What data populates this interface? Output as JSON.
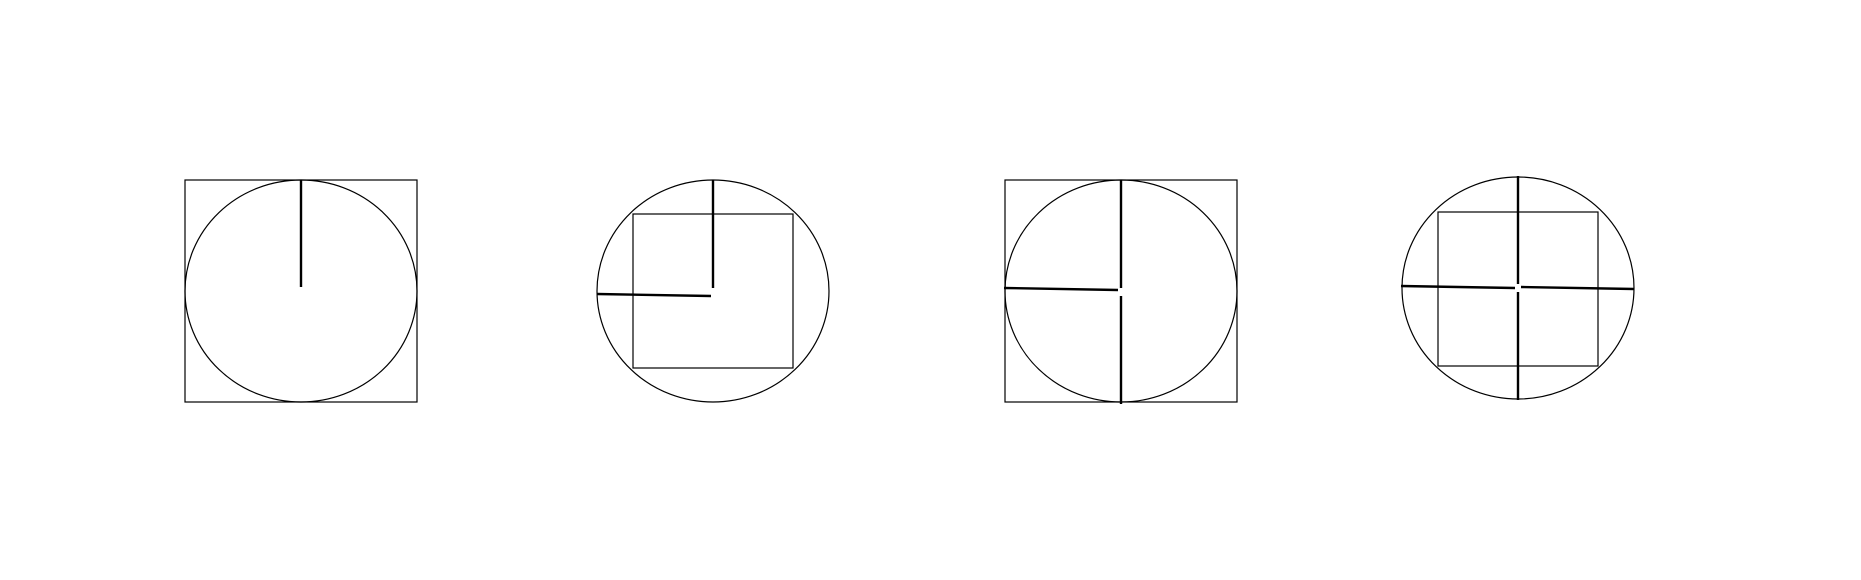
{
  "colors": {
    "background": "#ffffff",
    "outline": "#000000"
  },
  "figures": [
    {
      "name": "figure-1",
      "outer": "square",
      "inner": "circle",
      "lines": [
        "top"
      ]
    },
    {
      "name": "figure-2",
      "outer": "circle",
      "inner": "square",
      "lines": [
        "top",
        "left"
      ]
    },
    {
      "name": "figure-3",
      "outer": "square",
      "inner": "circle",
      "lines": [
        "top",
        "left",
        "bottom"
      ]
    },
    {
      "name": "figure-4",
      "outer": "circle",
      "inner": "square",
      "lines": [
        "top",
        "left",
        "bottom",
        "right"
      ]
    }
  ]
}
